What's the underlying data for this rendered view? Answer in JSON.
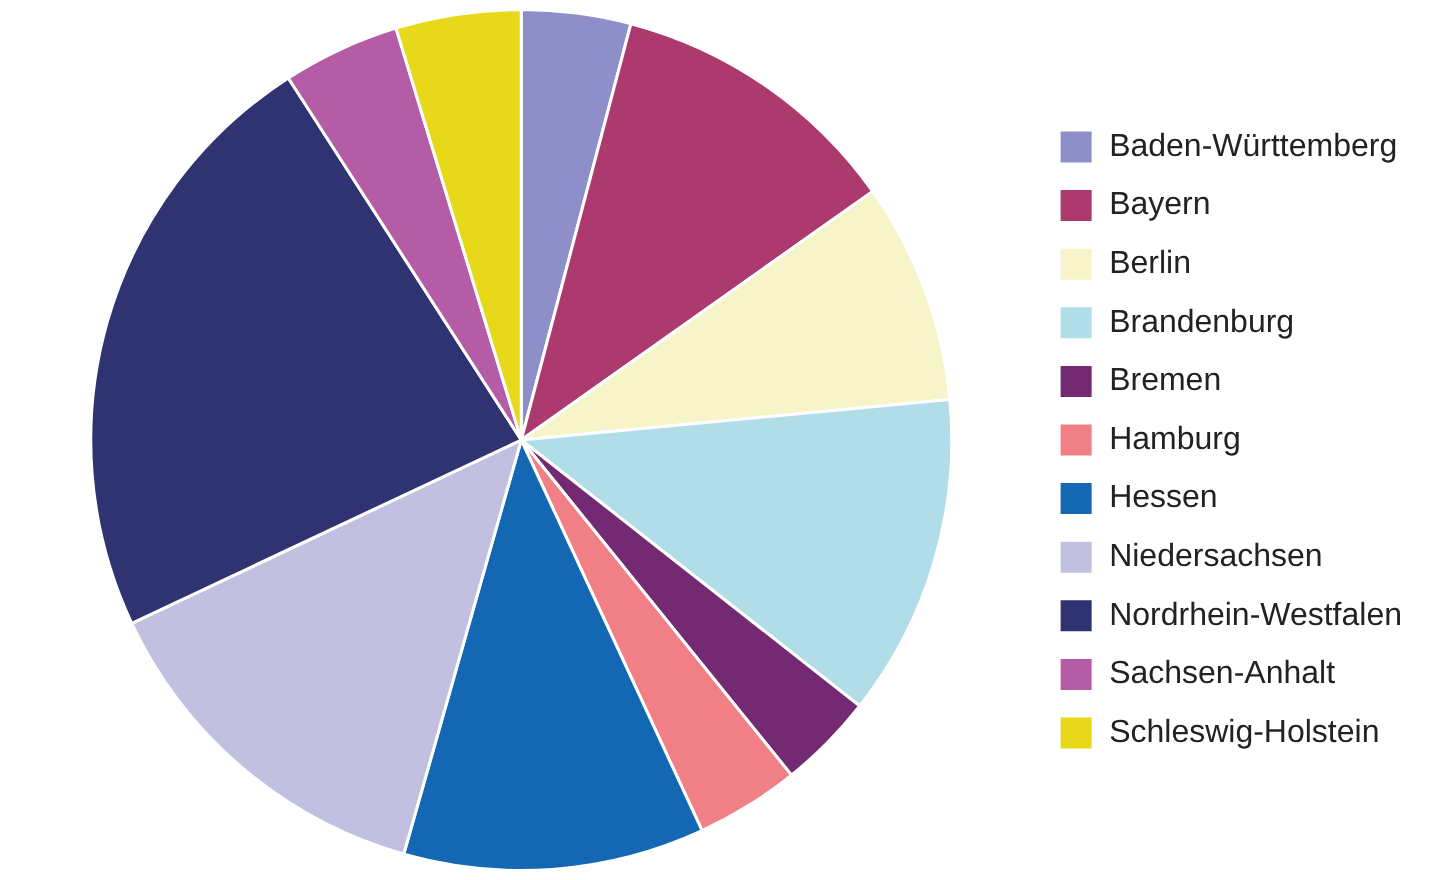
{
  "chart_data": {
    "type": "pie",
    "categories": [
      "Baden-Württemberg",
      "Bayern",
      "Berlin",
      "Brandenburg",
      "Bremen",
      "Hamburg",
      "Hessen",
      "Niedersachsen",
      "Nordrhein-Westfalen",
      "Sachsen-Anhalt",
      "Schleswig-Holstein"
    ],
    "values": [
      4.1,
      11.1,
      8.3,
      12.1,
      3.6,
      3.9,
      11.3,
      13.6,
      22.9,
      4.4,
      4.7
    ],
    "colors": [
      "#8e8ec8",
      "#ad3a6e",
      "#f6f4c8",
      "#b0dde8",
      "#732a72",
      "#f07f86",
      "#1467b3",
      "#c1c0e0",
      "#2f3372",
      "#b55ca6",
      "#e8d81a"
    ],
    "legend": "right"
  }
}
